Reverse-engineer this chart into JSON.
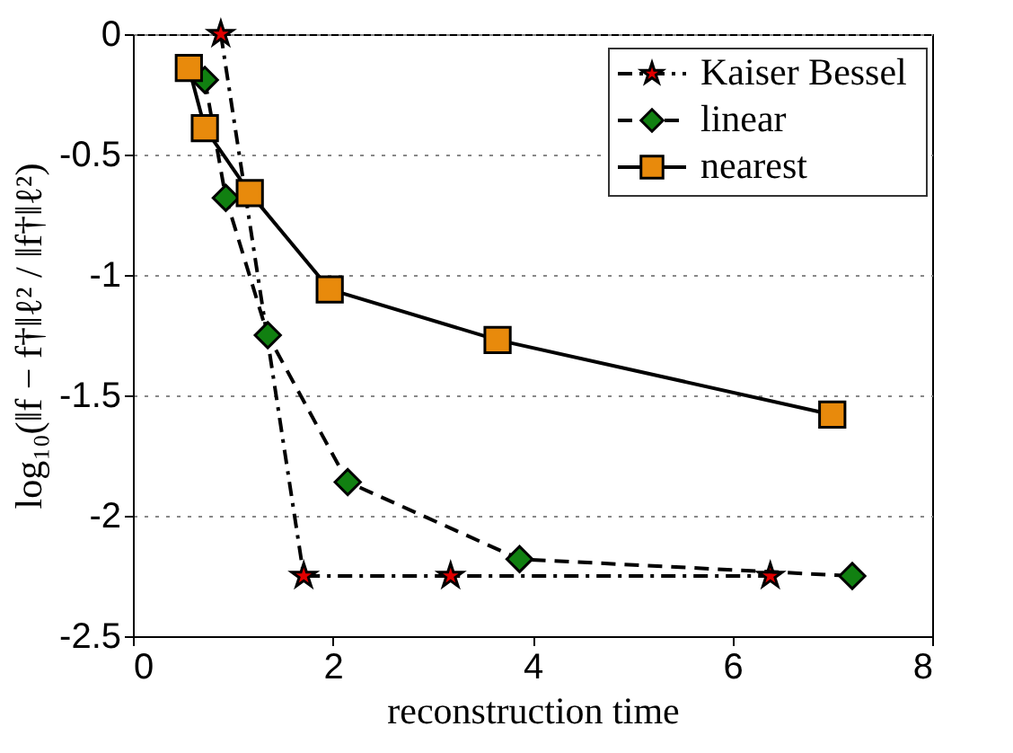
{
  "chart_data": {
    "type": "line",
    "xlabel": "reconstruction time",
    "ylabel": "log₁₀(‖f − f†‖ℓ² / ‖f†‖ℓ²)",
    "xlim": [
      0,
      8
    ],
    "xticks": [
      0,
      2,
      4,
      6,
      8
    ],
    "ylim": [
      -2.5,
      0
    ],
    "yticks": [
      -2.5,
      -2,
      -1.5,
      -1,
      -0.5,
      0
    ],
    "grid": "y",
    "legend": "top right",
    "series": [
      {
        "name": "Kaiser Bessel",
        "color": "#e00000",
        "marker": "star",
        "line_style": "dashdot",
        "x": [
          0.88,
          1.71,
          3.18,
          6.38
        ],
        "values": [
          0,
          -2.25,
          -2.25,
          -2.25
        ]
      },
      {
        "name": "linear",
        "color": "#118011",
        "marker": "diamond",
        "line_style": "dashed",
        "x": [
          0.72,
          0.93,
          1.35,
          2.15,
          3.87,
          7.2
        ],
        "values": [
          -0.19,
          -0.68,
          -1.25,
          -1.86,
          -2.18,
          -2.25
        ]
      },
      {
        "name": "nearest",
        "color": "#e88a0c",
        "marker": "square",
        "line_style": "solid",
        "x": [
          0.56,
          0.72,
          1.17,
          1.97,
          3.65,
          7.0
        ],
        "values": [
          -0.14,
          -0.39,
          -0.66,
          -1.06,
          -1.27,
          -1.58
        ]
      }
    ]
  }
}
